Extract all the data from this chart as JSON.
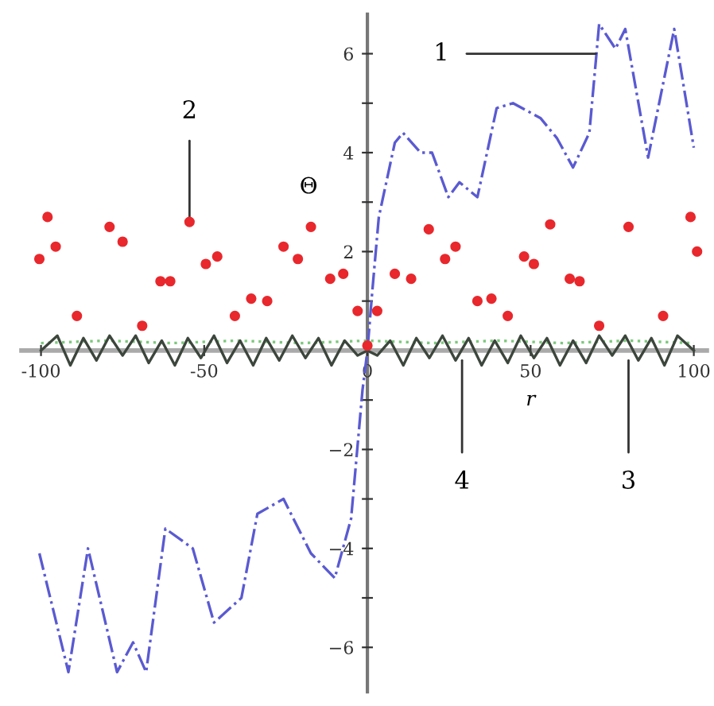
{
  "chart_data": {
    "type": "line",
    "xlabel": "r",
    "ylabel": "Θ",
    "xlim": [
      -106,
      104
    ],
    "ylim": [
      -6.9,
      6.8
    ],
    "xticks": [
      -100,
      -50,
      {
        "value": 0,
        "label": "0"
      },
      50,
      100
    ],
    "yticks": [
      {
        "value": -6,
        "label": "−6"
      },
      {
        "value": -5,
        "label": null
      },
      {
        "value": -4,
        "label": "−4"
      },
      {
        "value": -3,
        "label": null
      },
      {
        "value": -2,
        "label": "−2"
      },
      {
        "value": -1,
        "label": null
      },
      {
        "value": 1,
        "label": null
      },
      2,
      {
        "value": 3,
        "label": null
      },
      4,
      {
        "value": 5,
        "label": null
      },
      6
    ],
    "grid": false,
    "legend": false,
    "series": [
      {
        "line_style": "dashdot",
        "color": "#5a5ad2",
        "x": [
          -100.5,
          -91.6,
          -85.6,
          -76.7,
          -71.8,
          -67.8,
          -61.9,
          -53.5,
          -47,
          -38.6,
          -33.7,
          -25.7,
          -17.3,
          -10,
          -5,
          -1.5,
          0,
          1.5,
          3.5,
          8.4,
          10.9,
          16.3,
          19.8,
          24.8,
          28.2,
          33.7,
          39.6,
          44.6,
          53,
          58,
          63,
          68,
          71,
          76,
          79,
          86,
          94,
          100
        ],
        "values": [
          -4.1,
          -6.5,
          -4.0,
          -6.5,
          -5.9,
          -6.5,
          -3.6,
          -4.0,
          -5.5,
          -5.0,
          -3.3,
          -3.0,
          -4.1,
          -4.6,
          -3.4,
          -0.8,
          0,
          1.2,
          2.7,
          4.2,
          4.4,
          4.0,
          4.0,
          3.1,
          3.4,
          3.1,
          4.9,
          5.0,
          4.7,
          4.3,
          3.7,
          4.4,
          6.6,
          6.1,
          6.5,
          3.9,
          6.5,
          4.1
        ]
      },
      {
        "type": "scatter",
        "marker": "circle",
        "color": "#e8282d",
        "x": [
          -100.5,
          -98,
          -95.5,
          -89,
          -79,
          -75,
          -69,
          -63.4,
          -60.4,
          -54.5,
          -49.5,
          -46,
          -40.6,
          -35.6,
          -30.7,
          -25.7,
          -21.3,
          -17.3,
          -11.4,
          -7.4,
          -3,
          0,
          3,
          8.4,
          13.4,
          18.8,
          23.8,
          27,
          33.7,
          38,
          43,
          48,
          51,
          56,
          62,
          65,
          71,
          80,
          90.6,
          99,
          101
        ],
        "values": [
          1.85,
          2.7,
          2.1,
          0.7,
          2.5,
          2.2,
          0.5,
          1.4,
          1.4,
          2.6,
          1.75,
          1.9,
          0.7,
          1.05,
          1.0,
          2.1,
          1.85,
          2.5,
          1.45,
          1.55,
          0.8,
          0.1,
          0.8,
          1.55,
          1.45,
          2.45,
          1.85,
          2.1,
          1.0,
          1.05,
          0.7,
          1.9,
          1.75,
          2.55,
          1.45,
          1.4,
          0.5,
          2.5,
          0.7,
          2.7,
          2.0
        ]
      },
      {
        "line_style": "dotted",
        "color": "#7cc87c",
        "x": [
          -100,
          -80,
          -60,
          -40,
          -20,
          0,
          20,
          40,
          60,
          80,
          100
        ],
        "values": [
          0.15,
          0.2,
          0.15,
          0.2,
          0.15,
          0.2,
          0.15,
          0.2,
          0.15,
          0.2,
          0.15
        ]
      },
      {
        "line_style": "solid",
        "color": "#3c463c",
        "x": [
          -100,
          -95,
          -91,
          -87,
          -83,
          -79,
          -75,
          -71,
          -67,
          -63,
          -59,
          -55,
          -51,
          -47,
          -43,
          -39,
          -35,
          -31,
          -27,
          -23,
          -19,
          -15,
          -11,
          -7,
          -3,
          0,
          3,
          7,
          11,
          15,
          19,
          23,
          27,
          31,
          35,
          39,
          43,
          47,
          51,
          55,
          59,
          63,
          67,
          71,
          75,
          79,
          83,
          87,
          91,
          95,
          100
        ],
        "values": [
          0.0,
          0.3,
          -0.3,
          0.25,
          -0.2,
          0.3,
          -0.1,
          0.3,
          -0.25,
          0.2,
          -0.3,
          0.25,
          -0.15,
          0.3,
          -0.25,
          0.2,
          -0.3,
          0.25,
          -0.2,
          0.3,
          -0.15,
          0.25,
          -0.3,
          0.2,
          -0.1,
          0.0,
          -0.1,
          0.2,
          -0.3,
          0.25,
          -0.15,
          0.3,
          -0.2,
          0.25,
          -0.3,
          0.2,
          -0.25,
          0.3,
          -0.15,
          0.25,
          -0.3,
          0.2,
          -0.25,
          0.3,
          -0.1,
          0.3,
          -0.2,
          0.25,
          -0.3,
          0.3,
          0.0
        ]
      }
    ],
    "annotations": [
      {
        "text": "1",
        "x": 70,
        "y": 6.0
      },
      {
        "text": "2",
        "x": -54.5,
        "y": 2.6
      },
      {
        "text": "3",
        "x": 80,
        "y": -0.2
      },
      {
        "text": "4",
        "x": 29,
        "y": -0.2
      }
    ]
  }
}
